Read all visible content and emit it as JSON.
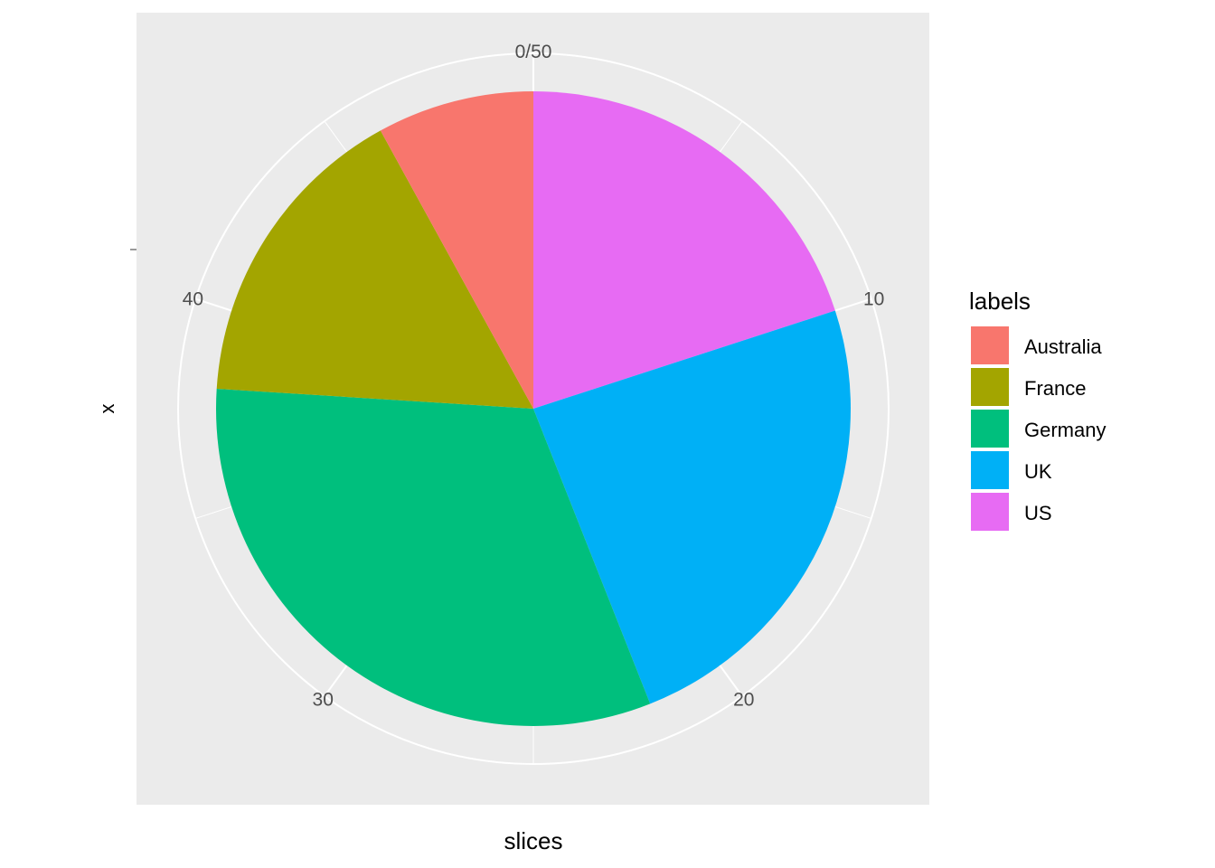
{
  "chart_data": {
    "type": "pie",
    "xlabel": "slices",
    "ylabel": "x",
    "total": 50,
    "theta_ticks": [
      "0/50",
      "10",
      "20",
      "30",
      "40"
    ],
    "theta_tick_values": [
      0,
      10,
      20,
      30,
      40
    ],
    "legend": {
      "title": "labels",
      "position": "right"
    },
    "slices": [
      {
        "label": "US",
        "value": 10,
        "color": "#E76BF3"
      },
      {
        "label": "UK",
        "value": 12,
        "color": "#00B0F6"
      },
      {
        "label": "Germany",
        "value": 16,
        "color": "#00BF7D"
      },
      {
        "label": "France",
        "value": 8,
        "color": "#A3A500"
      },
      {
        "label": "Australia",
        "value": 4,
        "color": "#F8766D"
      }
    ],
    "legend_order": [
      "Australia",
      "France",
      "Germany",
      "UK",
      "US"
    ],
    "panel_background": "#EBEBEB",
    "grid": true
  }
}
